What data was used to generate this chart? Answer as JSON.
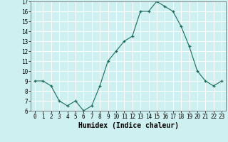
{
  "x": [
    0,
    1,
    2,
    3,
    4,
    5,
    6,
    7,
    8,
    9,
    10,
    11,
    12,
    13,
    14,
    15,
    16,
    17,
    18,
    19,
    20,
    21,
    22,
    23
  ],
  "y": [
    9.0,
    9.0,
    8.5,
    7.0,
    6.5,
    7.0,
    6.0,
    6.5,
    8.5,
    11.0,
    12.0,
    13.0,
    13.5,
    16.0,
    16.0,
    17.0,
    16.5,
    16.0,
    14.5,
    12.5,
    10.0,
    9.0,
    8.5,
    9.0
  ],
  "xlabel": "Humidex (Indice chaleur)",
  "ylim": [
    6,
    17
  ],
  "yticks": [
    6,
    7,
    8,
    9,
    10,
    11,
    12,
    13,
    14,
    15,
    16,
    17
  ],
  "xticks": [
    0,
    1,
    2,
    3,
    4,
    5,
    6,
    7,
    8,
    9,
    10,
    11,
    12,
    13,
    14,
    15,
    16,
    17,
    18,
    19,
    20,
    21,
    22,
    23
  ],
  "line_color": "#1a6b5a",
  "marker": "+",
  "bg_color": "#cff0f0",
  "grid_color": "#ffffff",
  "tick_fontsize": 5.5,
  "xlabel_fontsize": 7
}
